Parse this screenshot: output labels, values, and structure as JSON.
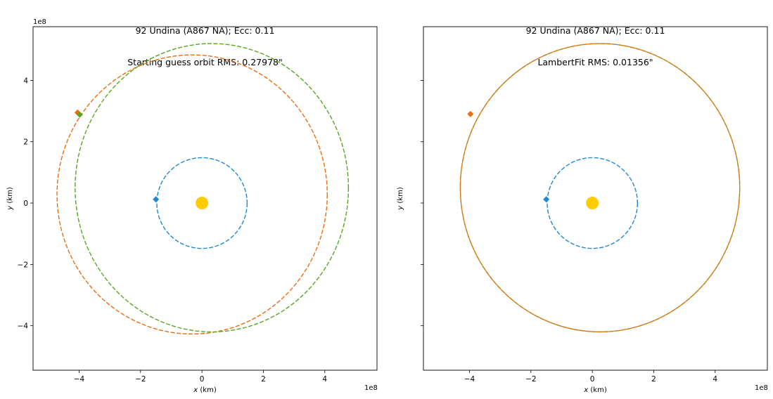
{
  "chart_data": [
    {
      "type": "scatter",
      "title_line1": "92 Undina (A867 NA); Ecc: 0.11",
      "title_line2": "Starting guess orbit RMS: 0.27978\"",
      "xlabel": "x (km)",
      "ylabel": "y (km)",
      "xlim": [
        -550000000.0,
        570000000.0
      ],
      "ylim": [
        -545000000.0,
        575000000.0
      ],
      "offset_label": "1e8",
      "xticks": [
        -4,
        -2,
        0,
        2,
        4
      ],
      "yticks": [
        -4,
        -2,
        0,
        2,
        4
      ],
      "show_yticklabels": true,
      "grid": false,
      "sun": {
        "x": 0,
        "y": 0,
        "color": "#ffcc00"
      },
      "orbits": [
        {
          "center_x": 0,
          "center_y": 0,
          "radius_x": 147000000.0,
          "radius_y": 148000000.0,
          "color": "#1f8ad0",
          "dashed": true
        },
        {
          "center_x": -32000000.0,
          "center_y": 28000000.0,
          "radius_x": 440000000.0,
          "radius_y": 455000000.0,
          "color": "#ee6c10",
          "dashed": true
        },
        {
          "center_x": 32000000.0,
          "center_y": 50000000.0,
          "radius_x": 445000000.0,
          "radius_y": 470000000.0,
          "color": "#55a820",
          "dashed": true
        }
      ],
      "markers": [
        {
          "x": -150000000.0,
          "y": 12000000.0,
          "color": "#1f8ad0"
        },
        {
          "x": -405000000.0,
          "y": 295000000.0,
          "color": "#ee6c10"
        },
        {
          "x": -398000000.0,
          "y": 288000000.0,
          "color": "#55a820"
        }
      ]
    },
    {
      "type": "scatter",
      "title_line1": "92 Undina (A867 NA); Ecc: 0.11",
      "title_line2": "LambertFit RMS: 0.01356\"",
      "xlabel": "x (km)",
      "ylabel": "y (km)",
      "xlim": [
        -550000000.0,
        570000000.0
      ],
      "ylim": [
        -545000000.0,
        575000000.0
      ],
      "offset_label": "1e8",
      "xticks": [
        -4,
        -2,
        0,
        2,
        4
      ],
      "yticks": [
        -4,
        -2,
        0,
        2,
        4
      ],
      "show_yticklabels": false,
      "grid": false,
      "sun": {
        "x": 0,
        "y": 0,
        "color": "#ffcc00"
      },
      "orbits": [
        {
          "center_x": 0,
          "center_y": 0,
          "radius_x": 147000000.0,
          "radius_y": 148000000.0,
          "color": "#1f8ad0",
          "dashed": true
        },
        {
          "center_x": 25000000.0,
          "center_y": 50000000.0,
          "radius_x": 455000000.0,
          "radius_y": 470000000.0,
          "color": "#55a820",
          "dashed": true
        },
        {
          "center_x": 25000000.0,
          "center_y": 50000000.0,
          "radius_x": 455000000.0,
          "radius_y": 470000000.0,
          "color": "#d97a1a",
          "dashed": false
        }
      ],
      "markers": [
        {
          "x": -150000000.0,
          "y": 12000000.0,
          "color": "#1f8ad0"
        },
        {
          "x": -397000000.0,
          "y": 290000000.0,
          "color": "#ee6c10"
        }
      ]
    }
  ]
}
